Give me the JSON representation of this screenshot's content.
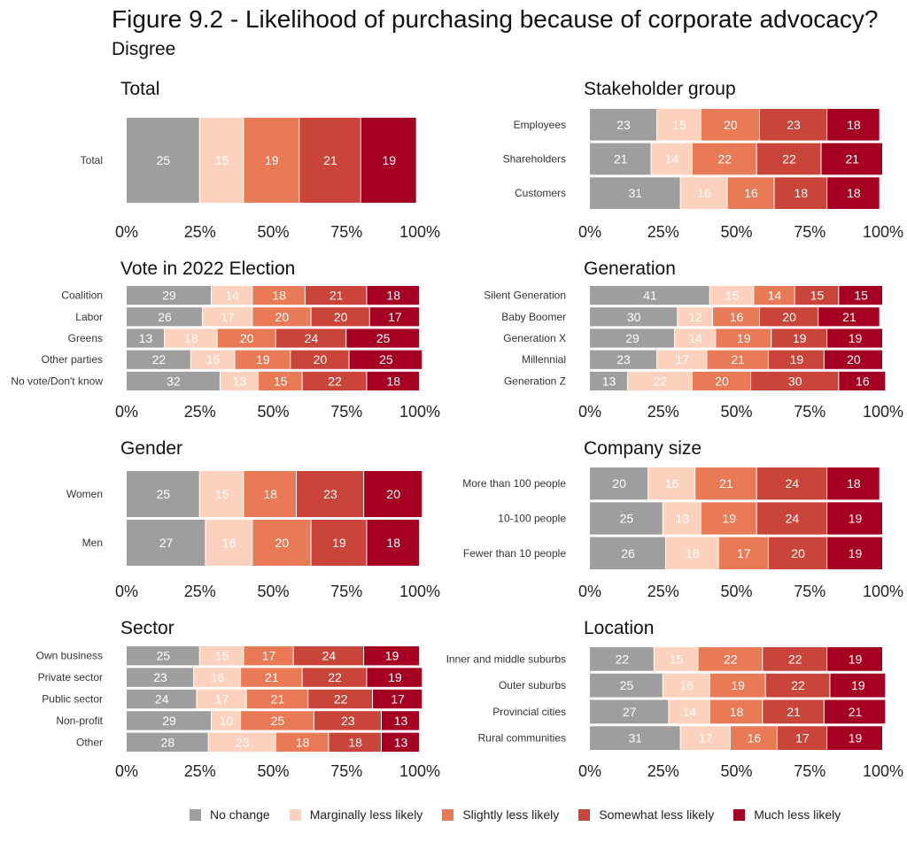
{
  "title": "Figure 9.2 - Likelihood of purchasing because of corporate advocacy?",
  "subtitle": "Disgree",
  "colors": {
    "No change": "#9e9e9e",
    "Marginally less likely": "#fcd1bd",
    "Slightly less likely": "#e87a55",
    "Somewhat less likely": "#ca4539",
    "Much less likely": "#a50021"
  },
  "legend": [
    "No change",
    "Marginally less likely",
    "Slightly less likely",
    "Somewhat less likely",
    "Much less likely"
  ],
  "chart_data": [
    {
      "type": "bar",
      "stacked": true,
      "orientation": "horizontal",
      "title": "Total",
      "categories": [
        "Total"
      ],
      "series": [
        {
          "name": "No change",
          "values": [
            25
          ]
        },
        {
          "name": "Marginally less likely",
          "values": [
            15
          ]
        },
        {
          "name": "Slightly less likely",
          "values": [
            19
          ]
        },
        {
          "name": "Somewhat less likely",
          "values": [
            21
          ]
        },
        {
          "name": "Much less likely",
          "values": [
            19
          ]
        }
      ],
      "xticks": [
        "0%",
        "25%",
        "50%",
        "75%",
        "100%"
      ],
      "xlim": [
        0,
        100
      ]
    },
    {
      "type": "bar",
      "stacked": true,
      "orientation": "horizontal",
      "title": "Stakeholder group",
      "categories": [
        "Employees",
        "Shareholders",
        "Customers"
      ],
      "series": [
        {
          "name": "No change",
          "values": [
            23,
            21,
            31
          ]
        },
        {
          "name": "Marginally less likely",
          "values": [
            15,
            14,
            16
          ]
        },
        {
          "name": "Slightly less likely",
          "values": [
            20,
            22,
            16
          ]
        },
        {
          "name": "Somewhat less likely",
          "values": [
            23,
            22,
            18
          ]
        },
        {
          "name": "Much less likely",
          "values": [
            18,
            21,
            18
          ]
        }
      ],
      "xticks": [
        "0%",
        "25%",
        "50%",
        "75%",
        "100%"
      ],
      "xlim": [
        0,
        100
      ]
    },
    {
      "type": "bar",
      "stacked": true,
      "orientation": "horizontal",
      "title": "Vote in 2022 Election",
      "categories": [
        "Coalition",
        "Labor",
        "Greens",
        "Other parties",
        "No vote/Don't know"
      ],
      "series": [
        {
          "name": "No change",
          "values": [
            29,
            26,
            13,
            22,
            32
          ]
        },
        {
          "name": "Marginally less likely",
          "values": [
            14,
            17,
            18,
            15,
            13
          ]
        },
        {
          "name": "Slightly less likely",
          "values": [
            18,
            20,
            20,
            19,
            15
          ]
        },
        {
          "name": "Somewhat less likely",
          "values": [
            21,
            20,
            24,
            20,
            22
          ]
        },
        {
          "name": "Much less likely",
          "values": [
            18,
            17,
            25,
            25,
            18
          ]
        }
      ],
      "xticks": [
        "0%",
        "25%",
        "50%",
        "75%",
        "100%"
      ],
      "xlim": [
        0,
        100
      ]
    },
    {
      "type": "bar",
      "stacked": true,
      "orientation": "horizontal",
      "title": "Generation",
      "categories": [
        "Silent Generation",
        "Baby Boomer",
        "Generation X",
        "Millennial",
        "Generation Z"
      ],
      "series": [
        {
          "name": "No change",
          "values": [
            41,
            30,
            29,
            23,
            13
          ]
        },
        {
          "name": "Marginally less likely",
          "values": [
            15,
            12,
            14,
            17,
            22
          ]
        },
        {
          "name": "Slightly less likely",
          "values": [
            14,
            16,
            19,
            21,
            20
          ]
        },
        {
          "name": "Somewhat less likely",
          "values": [
            15,
            20,
            19,
            19,
            30
          ]
        },
        {
          "name": "Much less likely",
          "values": [
            15,
            21,
            19,
            20,
            16
          ]
        }
      ],
      "xticks": [
        "0%",
        "25%",
        "50%",
        "75%",
        "100%"
      ],
      "xlim": [
        0,
        100
      ]
    },
    {
      "type": "bar",
      "stacked": true,
      "orientation": "horizontal",
      "title": "Gender",
      "categories": [
        "Women",
        "Men"
      ],
      "series": [
        {
          "name": "No change",
          "values": [
            25,
            27
          ]
        },
        {
          "name": "Marginally less likely",
          "values": [
            15,
            16
          ]
        },
        {
          "name": "Slightly less likely",
          "values": [
            18,
            20
          ]
        },
        {
          "name": "Somewhat less likely",
          "values": [
            23,
            19
          ]
        },
        {
          "name": "Much less likely",
          "values": [
            20,
            18
          ]
        }
      ],
      "xticks": [
        "0%",
        "25%",
        "50%",
        "75%",
        "100%"
      ],
      "xlim": [
        0,
        100
      ]
    },
    {
      "type": "bar",
      "stacked": true,
      "orientation": "horizontal",
      "title": "Company size",
      "categories": [
        "More than 100 people",
        "10-100 people",
        "Fewer than 10 people"
      ],
      "series": [
        {
          "name": "No change",
          "values": [
            20,
            25,
            26
          ]
        },
        {
          "name": "Marginally less likely",
          "values": [
            16,
            13,
            18
          ]
        },
        {
          "name": "Slightly less likely",
          "values": [
            21,
            19,
            17
          ]
        },
        {
          "name": "Somewhat less likely",
          "values": [
            24,
            24,
            20
          ]
        },
        {
          "name": "Much less likely",
          "values": [
            18,
            19,
            19
          ]
        }
      ],
      "xticks": [
        "0%",
        "25%",
        "50%",
        "75%",
        "100%"
      ],
      "xlim": [
        0,
        100
      ]
    },
    {
      "type": "bar",
      "stacked": true,
      "orientation": "horizontal",
      "title": "Sector",
      "categories": [
        "Own business",
        "Private sector",
        "Public sector",
        "Non-profit",
        "Other"
      ],
      "series": [
        {
          "name": "No change",
          "values": [
            25,
            23,
            24,
            29,
            28
          ]
        },
        {
          "name": "Marginally less likely",
          "values": [
            15,
            16,
            17,
            10,
            23
          ]
        },
        {
          "name": "Slightly less likely",
          "values": [
            17,
            21,
            21,
            25,
            18
          ]
        },
        {
          "name": "Somewhat less likely",
          "values": [
            24,
            22,
            22,
            23,
            18
          ]
        },
        {
          "name": "Much less likely",
          "values": [
            19,
            19,
            17,
            13,
            13
          ]
        }
      ],
      "xticks": [
        "0%",
        "25%",
        "50%",
        "75%",
        "100%"
      ],
      "xlim": [
        0,
        100
      ]
    },
    {
      "type": "bar",
      "stacked": true,
      "orientation": "horizontal",
      "title": "Location",
      "categories": [
        "Inner and middle suburbs",
        "Outer suburbs",
        "Provincial cities",
        "Rural communities"
      ],
      "series": [
        {
          "name": "No change",
          "values": [
            22,
            25,
            27,
            31
          ]
        },
        {
          "name": "Marginally less likely",
          "values": [
            15,
            16,
            14,
            17
          ]
        },
        {
          "name": "Slightly less likely",
          "values": [
            22,
            19,
            18,
            16
          ]
        },
        {
          "name": "Somewhat less likely",
          "values": [
            22,
            22,
            21,
            17
          ]
        },
        {
          "name": "Much less likely",
          "values": [
            19,
            19,
            21,
            19
          ]
        }
      ],
      "xticks": [
        "0%",
        "25%",
        "50%",
        "75%",
        "100%"
      ],
      "xlim": [
        0,
        100
      ]
    }
  ]
}
